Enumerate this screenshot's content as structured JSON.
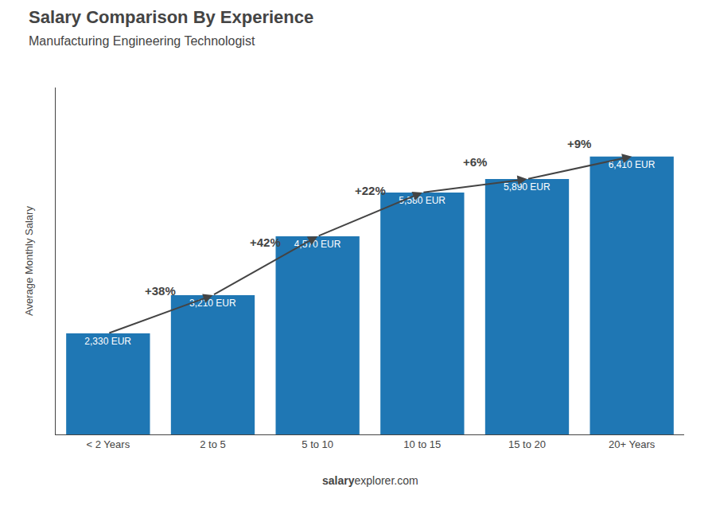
{
  "chart_data": {
    "type": "bar",
    "title": "Salary Comparison By Experience",
    "subtitle": "Manufacturing Engineering Technologist",
    "categories": [
      "< 2 Years",
      "2 to 5",
      "5 to 10",
      "10 to 15",
      "15 to 20",
      "20+ Years"
    ],
    "values": [
      2330,
      3210,
      4570,
      5580,
      5890,
      6410
    ],
    "value_labels": [
      "2,330 EUR",
      "3,210 EUR",
      "4,570 EUR",
      "5,580 EUR",
      "5,890 EUR",
      "6,410 EUR"
    ],
    "data_labels": true,
    "annotations": [
      "+38%",
      "+42%",
      "+22%",
      "+6%",
      "+9%"
    ],
    "ylabel": "Average Monthly Salary",
    "ylim": [
      0,
      8000
    ],
    "tick_labels": "x",
    "grid": false,
    "footer": [
      "salary",
      "explorer.com"
    ]
  }
}
